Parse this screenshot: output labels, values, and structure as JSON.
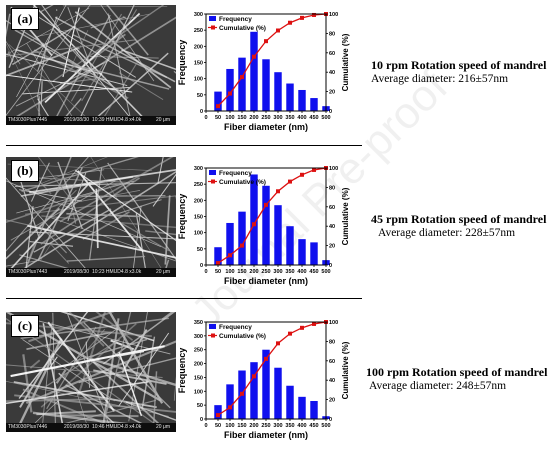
{
  "watermark": "Journal Pre-proof",
  "panels": [
    {
      "tag": "(a)",
      "sem": {
        "model": "TM3030Plus7445",
        "date": "2019/08/30",
        "params": "10:39 HMUD4.8 x4.0k",
        "scale": "20 μm"
      },
      "speed": "10 rpm Rotation speed of mandrel",
      "avg": "Average diameter: 216±57nm"
    },
    {
      "tag": "(b)",
      "sem": {
        "model": "TM3030Plus7443",
        "date": "2019/08/30",
        "params": "10:23 HMUD4.8 x3.0k",
        "scale": "20 μm"
      },
      "speed": "45 rpm Rotation speed of mandrel",
      "avg": "Average diameter: 228±57nm"
    },
    {
      "tag": "(c)",
      "sem": {
        "model": "TM3030Plus7446",
        "date": "2019/08/30",
        "params": "10:46 HMUD4.8 x4.0k",
        "scale": "20 μm"
      },
      "speed": "100 rpm Rotation speed of mandrel",
      "avg": "Average diameter: 248±57nm"
    }
  ],
  "chart_data": [
    {
      "type": "bar",
      "title": "",
      "xlabel": "Fiber diameter (nm)",
      "ylabel": "Frequency",
      "y2label": "Cumulative (%)",
      "xlim": [
        0,
        500
      ],
      "ylim": [
        0,
        300
      ],
      "y2lim": [
        0,
        100
      ],
      "xticks": [
        0,
        50,
        100,
        150,
        200,
        250,
        300,
        350,
        400,
        450,
        500
      ],
      "yticks": [
        0,
        50,
        100,
        150,
        200,
        250,
        300
      ],
      "y2ticks": [
        0,
        20,
        40,
        60,
        80,
        100
      ],
      "bar_x": [
        50,
        100,
        150,
        200,
        250,
        300,
        350,
        400,
        450,
        500
      ],
      "legend_position": "top-left",
      "series": [
        {
          "name": "Frequency",
          "kind": "bar",
          "color": "#1010ee",
          "values": [
            60,
            130,
            165,
            245,
            160,
            120,
            85,
            65,
            40,
            15
          ]
        },
        {
          "name": "Cumulative (%)",
          "kind": "line",
          "color": "#dd1111",
          "x": [
            50,
            100,
            150,
            200,
            250,
            300,
            350,
            400,
            450,
            500
          ],
          "values": [
            5,
            18,
            35,
            56,
            72,
            83,
            91,
            96,
            99,
            100
          ]
        }
      ]
    },
    {
      "type": "bar",
      "title": "",
      "xlabel": "Fiber diameter (nm)",
      "ylabel": "Frequency",
      "y2label": "Cumulative (%)",
      "xlim": [
        0,
        500
      ],
      "ylim": [
        0,
        300
      ],
      "y2lim": [
        0,
        100
      ],
      "xticks": [
        0,
        50,
        100,
        150,
        200,
        250,
        300,
        350,
        400,
        450,
        500
      ],
      "yticks": [
        0,
        50,
        100,
        150,
        200,
        250,
        300
      ],
      "y2ticks": [
        0,
        20,
        40,
        60,
        80,
        100
      ],
      "bar_x": [
        50,
        100,
        150,
        200,
        250,
        300,
        350,
        400,
        450,
        500
      ],
      "legend_position": "top-left",
      "series": [
        {
          "name": "Frequency",
          "kind": "bar",
          "color": "#1010ee",
          "values": [
            55,
            130,
            165,
            280,
            245,
            185,
            120,
            80,
            70,
            15
          ]
        },
        {
          "name": "Cumulative (%)",
          "kind": "line",
          "color": "#dd1111",
          "x": [
            50,
            100,
            150,
            200,
            250,
            300,
            350,
            400,
            450,
            500
          ],
          "values": [
            2,
            10,
            20,
            42,
            62,
            76,
            86,
            93,
            98,
            100
          ]
        }
      ]
    },
    {
      "type": "bar",
      "title": "",
      "xlabel": "Fiber diameter (nm)",
      "ylabel": "Frequency",
      "y2label": "Cumulative (%)",
      "xlim": [
        0,
        500
      ],
      "ylim": [
        0,
        350
      ],
      "y2lim": [
        0,
        100
      ],
      "xticks": [
        0,
        50,
        100,
        150,
        200,
        250,
        300,
        350,
        400,
        450,
        500
      ],
      "yticks": [
        0,
        50,
        100,
        150,
        200,
        250,
        300,
        350
      ],
      "y2ticks": [
        0,
        20,
        40,
        60,
        80,
        100
      ],
      "bar_x": [
        50,
        100,
        150,
        200,
        250,
        300,
        350,
        400,
        450,
        500
      ],
      "legend_position": "top-left",
      "series": [
        {
          "name": "Frequency",
          "kind": "bar",
          "color": "#1010ee",
          "values": [
            50,
            125,
            175,
            205,
            250,
            185,
            120,
            80,
            65,
            10
          ]
        },
        {
          "name": "Cumulative (%)",
          "kind": "line",
          "color": "#dd1111",
          "x": [
            50,
            100,
            150,
            200,
            250,
            300,
            350,
            400,
            450,
            500
          ],
          "values": [
            4,
            12,
            26,
            44,
            62,
            78,
            88,
            94,
            98,
            100
          ]
        }
      ]
    }
  ]
}
